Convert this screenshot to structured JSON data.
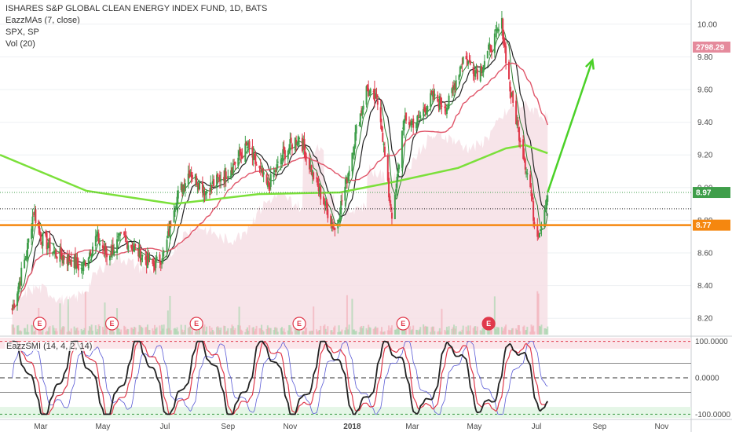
{
  "legend": {
    "title": "ISHARES S&P GLOBAL CLEAN ENERGY INDEX FUND, 1D, BATS",
    "ma": "EazzMAs (7, close)",
    "spx": "SPX, SP",
    "vol": "Vol (20)"
  },
  "oscillator": {
    "label": "EazzSMI (14, 4, 2, 14)"
  },
  "colors": {
    "up": "#3f9e4a",
    "down": "#e0394b",
    "ma_fast": "#2e7d32",
    "ma_mid": "#222222",
    "ma_slow": "#e0566a",
    "ma_200": "#7be03a",
    "support": "#f5870f",
    "arrow": "#4bd128",
    "spx_fill": "#f6dfe5",
    "earnings": "#e0394b"
  },
  "chart_data": [
    {
      "type": "candlestick",
      "title": "ISHARES S&P GLOBAL CLEAN ENERGY INDEX FUND, 1D, BATS",
      "y_ticks": [
        8.2,
        8.4,
        8.6,
        8.8,
        9.0,
        9.2,
        9.4,
        9.6,
        9.8,
        10.0
      ],
      "y_range": [
        8.1,
        10.1
      ],
      "x_ticks": [
        "Mar",
        "May",
        "Jul",
        "Sep",
        "Nov",
        "2018",
        "Mar",
        "May",
        "Jul",
        "Sep",
        "Nov"
      ],
      "price_path": [
        [
          "2017-02-01",
          8.25
        ],
        [
          "2017-02-15",
          8.6
        ],
        [
          "2017-02-22",
          8.86
        ],
        [
          "2017-03-01",
          8.7
        ],
        [
          "2017-03-15",
          8.6
        ],
        [
          "2017-04-01",
          8.55
        ],
        [
          "2017-04-10",
          8.5
        ],
        [
          "2017-04-25",
          8.7
        ],
        [
          "2017-05-05",
          8.58
        ],
        [
          "2017-05-20",
          8.7
        ],
        [
          "2017-06-05",
          8.6
        ],
        [
          "2017-06-20",
          8.52
        ],
        [
          "2017-07-01",
          8.6
        ],
        [
          "2017-07-10",
          8.9
        ],
        [
          "2017-07-25",
          9.1
        ],
        [
          "2017-08-10",
          8.98
        ],
        [
          "2017-09-01",
          9.1
        ],
        [
          "2017-09-20",
          9.25
        ],
        [
          "2017-10-10",
          9.0
        ],
        [
          "2017-10-25",
          9.2
        ],
        [
          "2017-11-10",
          9.32
        ],
        [
          "2017-11-25",
          9.05
        ],
        [
          "2017-12-08",
          8.85
        ],
        [
          "2017-12-15",
          8.74
        ],
        [
          "2017-12-25",
          9.0
        ],
        [
          "2018-01-05",
          9.35
        ],
        [
          "2018-01-15",
          9.6
        ],
        [
          "2018-01-28",
          9.5
        ],
        [
          "2018-02-05",
          9.0
        ],
        [
          "2018-02-10",
          8.8
        ],
        [
          "2018-02-20",
          9.4
        ],
        [
          "2018-03-05",
          9.4
        ],
        [
          "2018-03-20",
          9.55
        ],
        [
          "2018-04-05",
          9.5
        ],
        [
          "2018-04-20",
          9.8
        ],
        [
          "2018-05-05",
          9.7
        ],
        [
          "2018-05-20",
          9.9
        ],
        [
          "2018-05-28",
          10.0
        ],
        [
          "2018-06-05",
          9.6
        ],
        [
          "2018-06-15",
          9.3
        ],
        [
          "2018-06-25",
          9.0
        ],
        [
          "2018-06-30",
          8.72
        ],
        [
          "2018-07-05",
          8.76
        ],
        [
          "2018-07-12",
          8.97
        ]
      ],
      "last_price": "8.97",
      "support_level": "8.77",
      "spx_last": "2798.29",
      "earnings_markers": [
        {
          "date": "2017-02-28",
          "label": "E"
        },
        {
          "date": "2017-05-10",
          "label": "E"
        },
        {
          "date": "2017-08-01",
          "label": "E"
        },
        {
          "date": "2017-11-10",
          "label": "E"
        },
        {
          "date": "2018-02-20",
          "label": "E"
        },
        {
          "date": "2018-05-15",
          "label": "E"
        }
      ],
      "projection_arrow": {
        "from": [
          "2018-07-12",
          8.97
        ],
        "to": [
          "2018-08-25",
          9.78
        ]
      }
    },
    {
      "type": "line",
      "title": "EazzSMI (14, 4, 2, 14)",
      "y_ticks": [
        "100.0000",
        "0.0000",
        "-100.0000"
      ],
      "y_range": [
        -110,
        110
      ]
    }
  ]
}
